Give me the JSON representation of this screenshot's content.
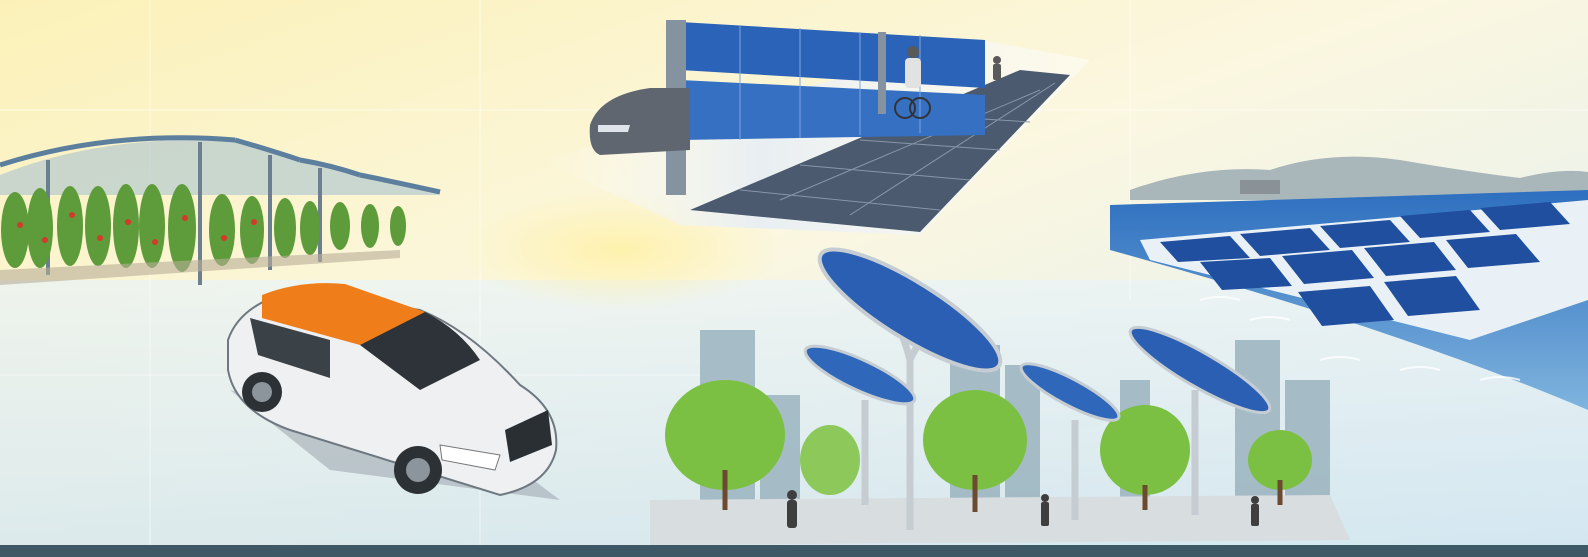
{
  "scene": {
    "panels": [
      {
        "key": "agrivoltaics",
        "icon": "greenhouse-solar-icon"
      },
      {
        "key": "solar-noise-barrier",
        "icon": "road-solar-icon"
      },
      {
        "key": "floating-solar",
        "icon": "floating-solar-icon"
      },
      {
        "key": "solar-car-roof",
        "icon": "solar-car-icon"
      },
      {
        "key": "solar-trees",
        "icon": "solar-tree-icon"
      }
    ],
    "colors": {
      "sky_warm": "#fbf1b8",
      "sky_cool": "#dcecf5",
      "panel_blue": "#2a63b8",
      "panel_dark": "#4b5a6e",
      "car_roof": "#ef7d1a",
      "tree_green": "#7cc043",
      "water": "#2e6fbf",
      "footer_bar": "#3f5866"
    }
  }
}
